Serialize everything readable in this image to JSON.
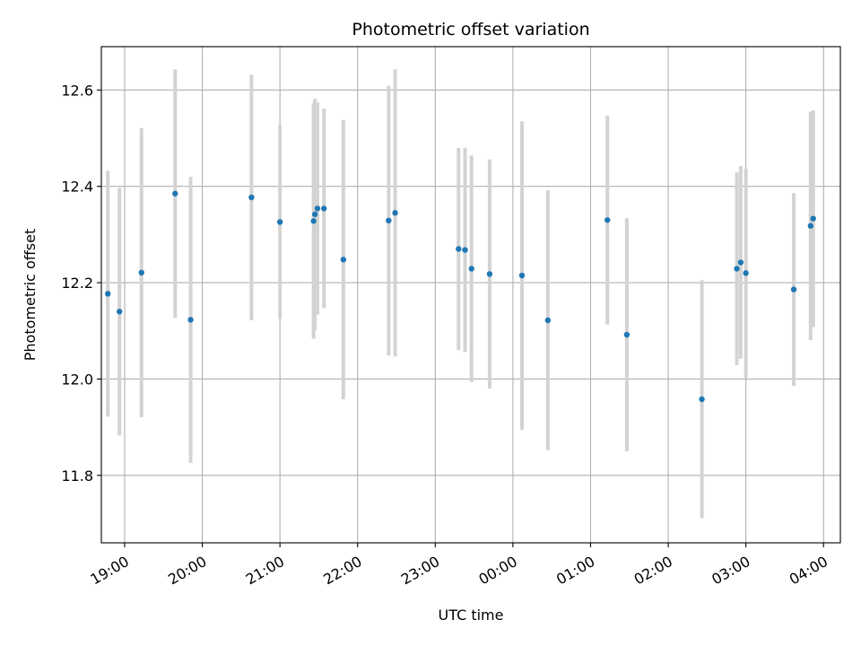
{
  "chart_data": {
    "type": "scatter",
    "title": "Photometric offset variation",
    "xlabel": "UTC time",
    "ylabel": "Photometric offset",
    "x_unit": "UTC time (HH:MM)",
    "xlim": [
      "18:42",
      "04:13"
    ],
    "ylim": [
      11.66,
      12.69
    ],
    "x_ticks": [
      "19:00",
      "20:00",
      "21:00",
      "22:00",
      "23:00",
      "00:00",
      "01:00",
      "02:00",
      "03:00",
      "04:00"
    ],
    "y_ticks": [
      11.8,
      12.0,
      12.2,
      12.4,
      12.6
    ],
    "y_tick_labels": [
      "11.8",
      "12.0",
      "12.2",
      "12.4",
      "12.6"
    ],
    "grid": true,
    "colors": {
      "point": "#1f77b4",
      "errorbar": "#d3d3d3",
      "grid": "#b0b0b0"
    },
    "series": [
      {
        "points": [
          {
            "x": "18:47",
            "y": 12.177,
            "err": 0.255
          },
          {
            "x": "18:56",
            "y": 12.14,
            "err": 0.257
          },
          {
            "x": "19:13",
            "y": 12.221,
            "err": 0.3
          },
          {
            "x": "19:39",
            "y": 12.385,
            "err": 0.258
          },
          {
            "x": "19:51",
            "y": 12.123,
            "err": 0.297
          },
          {
            "x": "20:38",
            "y": 12.377,
            "err": 0.255
          },
          {
            "x": "21:00",
            "y": 12.326,
            "err": 0.201
          },
          {
            "x": "21:26",
            "y": 12.328,
            "err": 0.244
          },
          {
            "x": "21:27",
            "y": 12.342,
            "err": 0.24
          },
          {
            "x": "21:29",
            "y": 12.354,
            "err": 0.22
          },
          {
            "x": "21:34",
            "y": 12.354,
            "err": 0.207
          },
          {
            "x": "21:49",
            "y": 12.248,
            "err": 0.29
          },
          {
            "x": "22:24",
            "y": 12.329,
            "err": 0.28
          },
          {
            "x": "22:29",
            "y": 12.345,
            "err": 0.298
          },
          {
            "x": "23:18",
            "y": 12.27,
            "err": 0.21
          },
          {
            "x": "23:23",
            "y": 12.268,
            "err": 0.212
          },
          {
            "x": "23:28",
            "y": 12.229,
            "err": 0.235
          },
          {
            "x": "23:42",
            "y": 12.218,
            "err": 0.238
          },
          {
            "x": "00:07",
            "y": 12.215,
            "err": 0.32
          },
          {
            "x": "00:27",
            "y": 12.122,
            "err": 0.27
          },
          {
            "x": "01:13",
            "y": 12.33,
            "err": 0.217
          },
          {
            "x": "01:28",
            "y": 12.092,
            "err": 0.242
          },
          {
            "x": "02:26",
            "y": 11.958,
            "err": 0.247
          },
          {
            "x": "02:53",
            "y": 12.229,
            "err": 0.2
          },
          {
            "x": "02:56",
            "y": 12.242,
            "err": 0.2
          },
          {
            "x": "03:00",
            "y": 12.22,
            "err": 0.217
          },
          {
            "x": "03:37",
            "y": 12.186,
            "err": 0.2
          },
          {
            "x": "03:50",
            "y": 12.318,
            "err": 0.237
          },
          {
            "x": "03:52",
            "y": 12.333,
            "err": 0.225
          }
        ]
      }
    ]
  }
}
